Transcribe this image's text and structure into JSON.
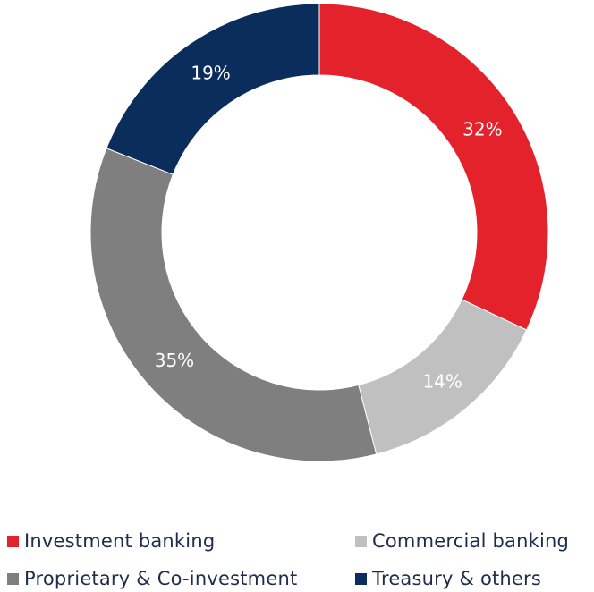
{
  "chart_data": {
    "type": "pie",
    "variant": "donut",
    "title": "",
    "categories": [
      "Investment banking",
      "Commercial banking",
      "Proprietary & Co-investment",
      "Treasury & others"
    ],
    "values": [
      32,
      14,
      35,
      19
    ],
    "value_labels": [
      "32%",
      "14%",
      "35%",
      "19%"
    ],
    "colors": [
      "#e3222b",
      "#c0c0c0",
      "#7f7f7f",
      "#0b2d5c"
    ],
    "start_angle_deg": 0,
    "direction": "clockwise",
    "legend_position": "bottom"
  }
}
